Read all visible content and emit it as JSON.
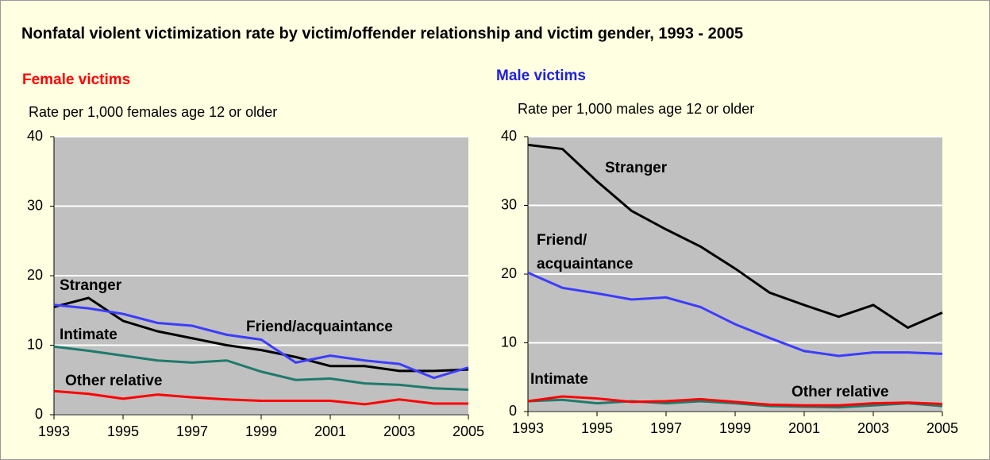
{
  "title": "Nonfatal violent victimization rate by victim/offender relationship and victim gender, 1993 - 2005",
  "chart_data": [
    {
      "type": "line",
      "subtitle": "Female victims",
      "subtitle_color": "#ff0000",
      "ylabel": "Rate per 1,000 females age 12 or older",
      "x": [
        1993,
        1994,
        1995,
        1996,
        1997,
        1998,
        1999,
        2000,
        2001,
        2002,
        2003,
        2004,
        2005
      ],
      "xlim": [
        1993,
        2005
      ],
      "xticks": [
        1993,
        1995,
        1997,
        1999,
        2001,
        2003,
        2005
      ],
      "ylim": [
        0,
        40
      ],
      "yticks": [
        0,
        10,
        20,
        30,
        40
      ],
      "grid": true,
      "series": [
        {
          "name": "Stranger",
          "color": "#000000",
          "values": [
            15.5,
            16.8,
            13.5,
            12,
            11,
            10,
            9.3,
            8.3,
            7,
            7,
            6.3,
            6.3,
            6.5
          ]
        },
        {
          "name": "Friend/acquaintance",
          "color": "#3c3cff",
          "values": [
            15.8,
            15.3,
            14.5,
            13.2,
            12.8,
            11.5,
            10.8,
            7.5,
            8.5,
            7.8,
            7.3,
            5.3,
            6.8
          ]
        },
        {
          "name": "Intimate",
          "color": "#1f7a6c",
          "values": [
            9.8,
            9.2,
            8.5,
            7.8,
            7.5,
            7.8,
            6.2,
            5,
            5.2,
            4.5,
            4.3,
            3.8,
            3.6
          ]
        },
        {
          "name": "Other relative",
          "color": "#ff0000",
          "values": [
            3.4,
            3.0,
            2.3,
            2.9,
            2.5,
            2.2,
            2.0,
            2.0,
            2.0,
            1.5,
            2.2,
            1.6,
            1.6
          ]
        }
      ]
    },
    {
      "type": "line",
      "subtitle": "Male victims",
      "subtitle_color": "#2020e0",
      "ylabel": "Rate per 1,000 males age 12 or older",
      "x": [
        1993,
        1994,
        1995,
        1996,
        1997,
        1998,
        1999,
        2000,
        2001,
        2002,
        2003,
        2004,
        2005
      ],
      "xlim": [
        1993,
        2005
      ],
      "xticks": [
        1993,
        1995,
        1997,
        1999,
        2001,
        2003,
        2005
      ],
      "ylim": [
        0,
        40
      ],
      "yticks": [
        0,
        10,
        20,
        30,
        40
      ],
      "grid": true,
      "series": [
        {
          "name": "Stranger",
          "color": "#000000",
          "values": [
            38.8,
            38.2,
            33.5,
            29.2,
            26.5,
            24,
            20.8,
            17.3,
            15.5,
            13.8,
            15.5,
            12.2,
            14.4
          ]
        },
        {
          "name": "Friend/acquaintance",
          "color": "#3c3cff",
          "values": [
            20.2,
            18,
            17.2,
            16.3,
            16.6,
            15.2,
            12.7,
            10.7,
            8.8,
            8.1,
            8.6,
            8.6,
            8.4
          ]
        },
        {
          "name": "Intimate",
          "color": "#1f7a6c",
          "values": [
            1.5,
            1.7,
            1.2,
            1.5,
            1.2,
            1.5,
            1.2,
            0.8,
            0.7,
            0.6,
            0.9,
            1.2,
            0.8
          ]
        },
        {
          "name": "Other relative",
          "color": "#ff0000",
          "values": [
            1.5,
            2.2,
            1.9,
            1.4,
            1.5,
            1.8,
            1.4,
            1.0,
            0.9,
            0.9,
            1.2,
            1.3,
            1.1
          ]
        }
      ]
    }
  ]
}
